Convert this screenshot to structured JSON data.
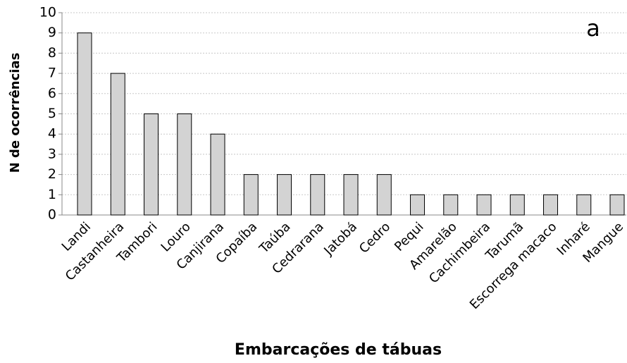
{
  "chart_data": {
    "type": "bar",
    "xlabel": "Embarcações de tábuas",
    "ylabel": "N de ocorrências",
    "annotation": "a",
    "categories": [
      "Landi",
      "Castanheira",
      "Tambori",
      "Louro",
      "Canjirana",
      "Copaíba",
      "Taúba",
      "Cedrarana",
      "Jatobá",
      "Cedro",
      "Pequi",
      "Amarelão",
      "Cachimbeira",
      "Tarumã",
      "Escorrega macaco",
      "Inharé",
      "Mangue"
    ],
    "values": [
      9,
      7,
      5,
      5,
      4,
      2,
      2,
      2,
      2,
      2,
      1,
      1,
      1,
      1,
      1,
      1,
      1
    ],
    "color": "#d3d3d3",
    "ylim": [
      0,
      10
    ],
    "yticks": [
      0,
      1,
      2,
      3,
      4,
      5,
      6,
      7,
      8,
      9,
      10
    ],
    "grid": true
  }
}
